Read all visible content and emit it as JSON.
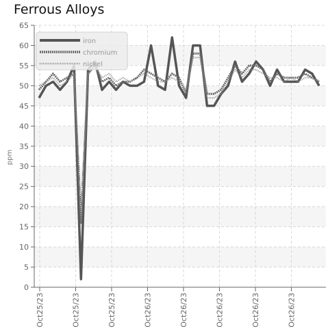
{
  "chart_data": {
    "type": "line",
    "title": "Ferrous Alloys",
    "ylabel": "ppm",
    "ylim": [
      0,
      65
    ],
    "yticks": [
      0,
      5,
      10,
      15,
      20,
      25,
      30,
      35,
      40,
      45,
      50,
      55,
      60,
      65
    ],
    "xtick_labels": [
      "Oct25/23",
      "Oct25/23",
      "Oct25/23",
      "Oct26/23",
      "Oct26/23",
      "Oct26/23",
      "Oct26/23",
      "Oct26/23"
    ],
    "grid": true,
    "legend_position": "top-left",
    "series": [
      {
        "name": "iron",
        "color": "#555555",
        "style": "solid",
        "values": [
          47,
          50,
          51,
          49,
          51,
          55,
          2,
          54,
          56,
          49,
          51,
          49,
          51,
          50,
          50,
          51,
          60,
          50,
          49,
          62,
          50,
          47,
          60,
          60,
          45,
          45,
          48,
          50,
          56,
          51,
          53,
          56,
          54,
          50,
          54,
          51,
          51,
          51,
          54,
          53,
          50
        ]
      },
      {
        "name": "chromium",
        "color": "#6a6a6a",
        "style": "dashed",
        "values": [
          49,
          51,
          53,
          51,
          52,
          53,
          16,
          53,
          55,
          51,
          52,
          50,
          51,
          51,
          52,
          54,
          53,
          52,
          51,
          53,
          52,
          48,
          58,
          58,
          48,
          48,
          49,
          52,
          55,
          53,
          55,
          55,
          54,
          51,
          53,
          52,
          52,
          52,
          53,
          52,
          51
        ]
      },
      {
        "name": "nickel",
        "color": "#8a8a8a",
        "style": "dotted",
        "values": [
          50,
          51,
          52,
          50,
          51,
          53,
          19,
          53,
          55,
          52,
          53,
          51,
          52,
          51,
          52,
          53,
          52,
          51,
          51,
          52,
          51,
          49,
          57,
          57,
          47,
          47,
          48,
          51,
          54,
          52,
          54,
          54,
          53,
          52,
          52,
          51,
          52,
          51,
          52,
          52,
          51
        ]
      }
    ]
  }
}
